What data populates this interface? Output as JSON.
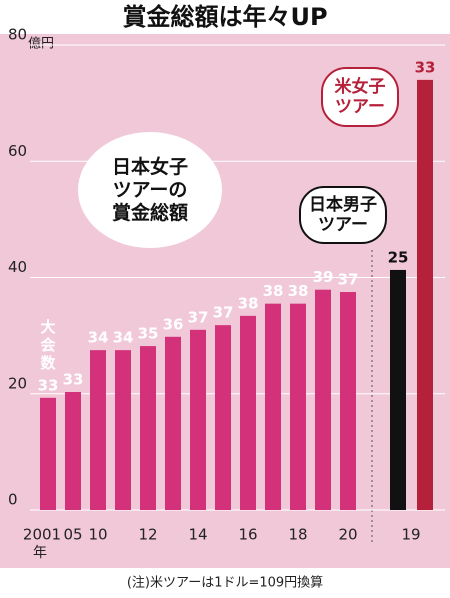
{
  "chart_data": {
    "type": "bar",
    "title": "賞金総額は年々UP",
    "y_unit": "億円",
    "x_label": "年",
    "count_label": "大会数",
    "note": "(注)米ツアーは1ドル=109円換算",
    "ylim": [
      0,
      80
    ],
    "yticks": [
      0,
      20,
      40,
      60,
      80
    ],
    "grid": true,
    "categories": [
      "2001",
      "05",
      "10",
      null,
      "12",
      null,
      "14",
      null,
      "16",
      null,
      "18",
      null,
      "20"
    ],
    "series": [
      {
        "name": "日本女子ツアーの賞金総額",
        "color": "#d3317a",
        "values": [
          19.3,
          20.3,
          27.5,
          27.5,
          28.2,
          29.8,
          31,
          31.8,
          33.4,
          35.5,
          35.5,
          37.9,
          37.5
        ],
        "counts": [
          33,
          33,
          34,
          34,
          35,
          36,
          37,
          37,
          38,
          38,
          38,
          39,
          37
        ]
      }
    ],
    "comparison": {
      "category": "19",
      "series": [
        {
          "name": "日本男子ツアー",
          "color": "#111111",
          "values": [
            41.3
          ],
          "counts": [
            25
          ]
        },
        {
          "name": "米女子ツアー",
          "color": "#b5213a",
          "values": [
            74
          ],
          "counts": [
            33
          ]
        }
      ]
    }
  }
}
